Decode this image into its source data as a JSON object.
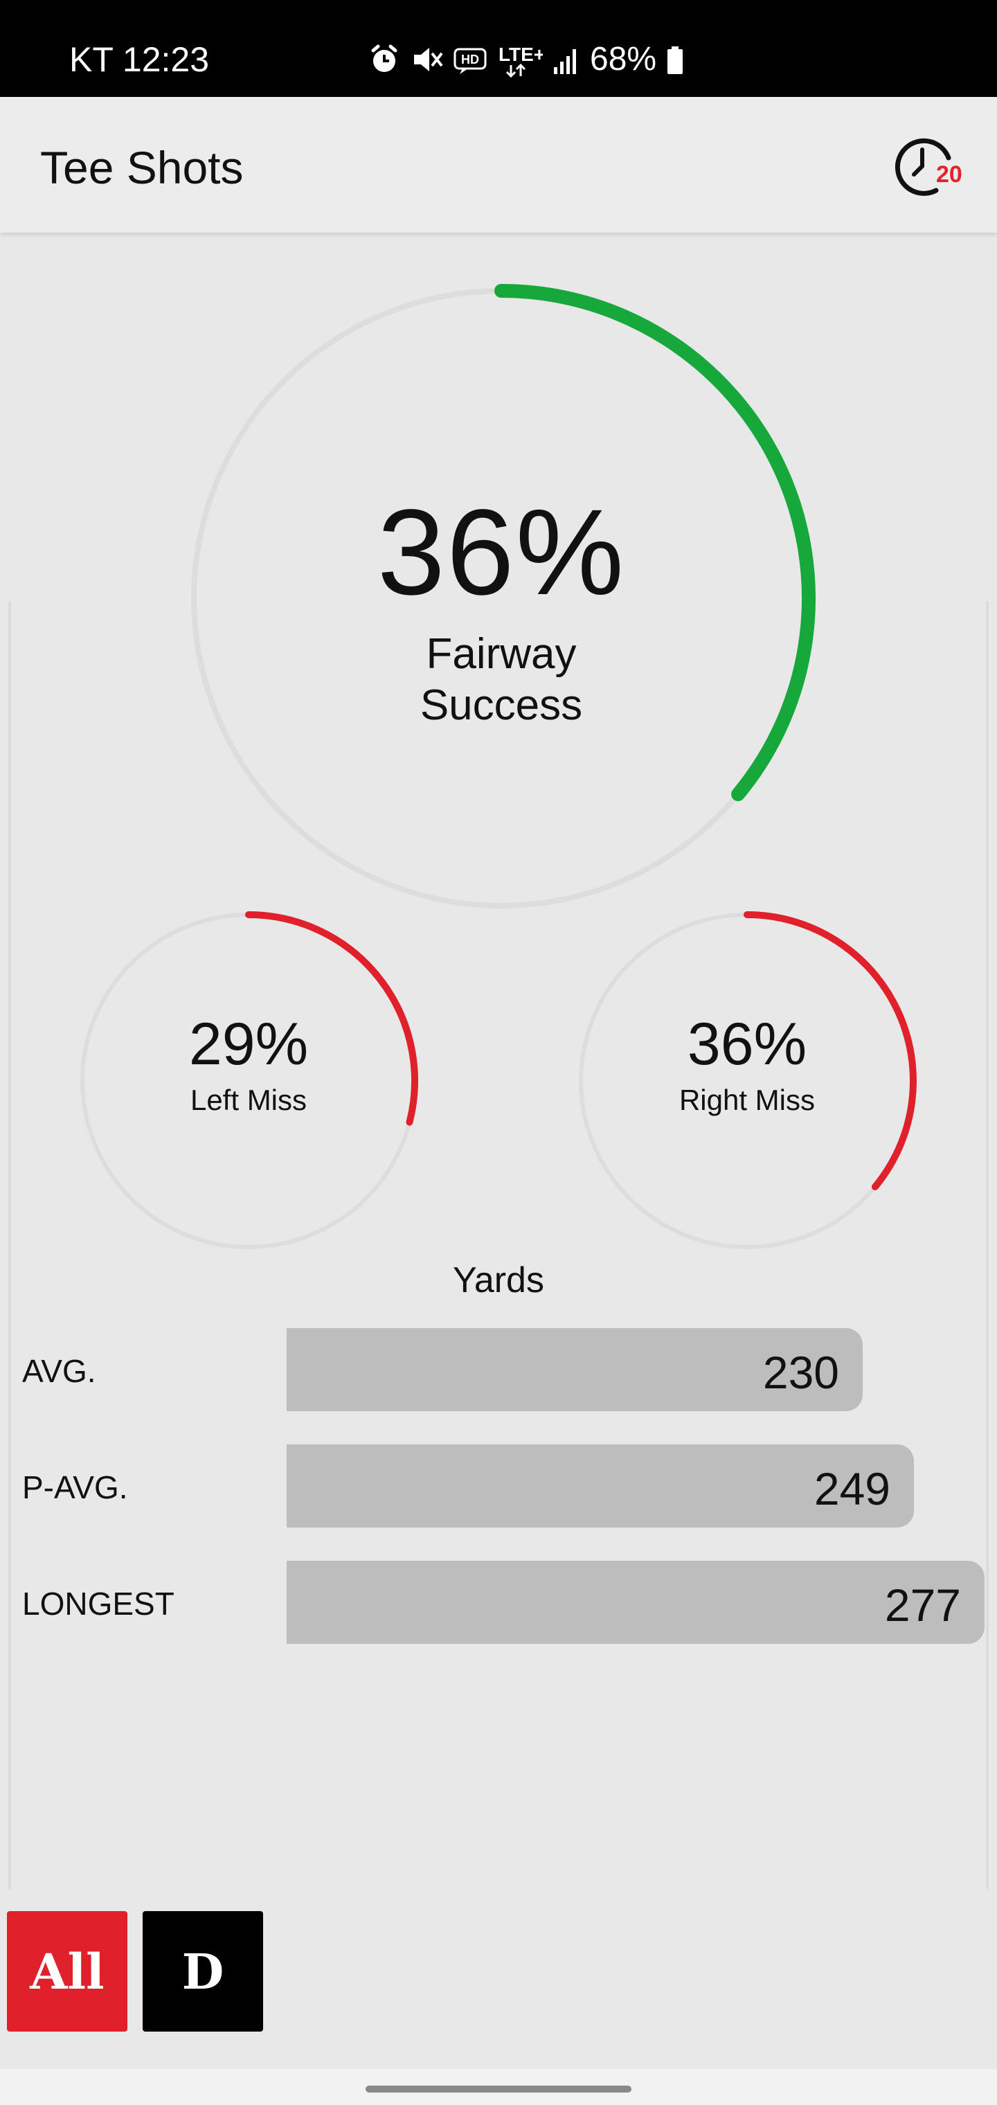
{
  "status_bar": {
    "time": "KT 12:23",
    "network": "LTE+",
    "battery": "68%",
    "icons": [
      "alarm-icon",
      "mute-icon",
      "hd-voice-icon",
      "lte-data-icon",
      "signal-icon",
      "battery-icon"
    ]
  },
  "header": {
    "title": "Tee Shots",
    "history_badge": "20",
    "history_icon": "clock-icon"
  },
  "fairway": {
    "value": "36%",
    "label": "Fairway Success",
    "percent": 36,
    "color": "#16a83a"
  },
  "left_miss": {
    "value": "29%",
    "label": "Left Miss",
    "percent": 29,
    "color": "#e0202a"
  },
  "right_miss": {
    "value": "36%",
    "label": "Right Miss",
    "percent": 36,
    "color": "#e0202a"
  },
  "yards": {
    "title": "Yards",
    "rows": [
      {
        "label": "AVG.",
        "value": "230"
      },
      {
        "label": "P-AVG.",
        "value": "249"
      },
      {
        "label": "LONGEST",
        "value": "277"
      }
    ]
  },
  "chart_data": {
    "type": "bar",
    "title": "Yards",
    "categories": [
      "AVG.",
      "P-AVG.",
      "LONGEST"
    ],
    "values": [
      230,
      249,
      277
    ]
  },
  "filters": {
    "all_label": "All",
    "d_label": "D",
    "active_color": "#e0202a"
  },
  "colors": {
    "track": "#dddddd",
    "bar": "#bdbdbd",
    "background": "#e8e8e8"
  }
}
